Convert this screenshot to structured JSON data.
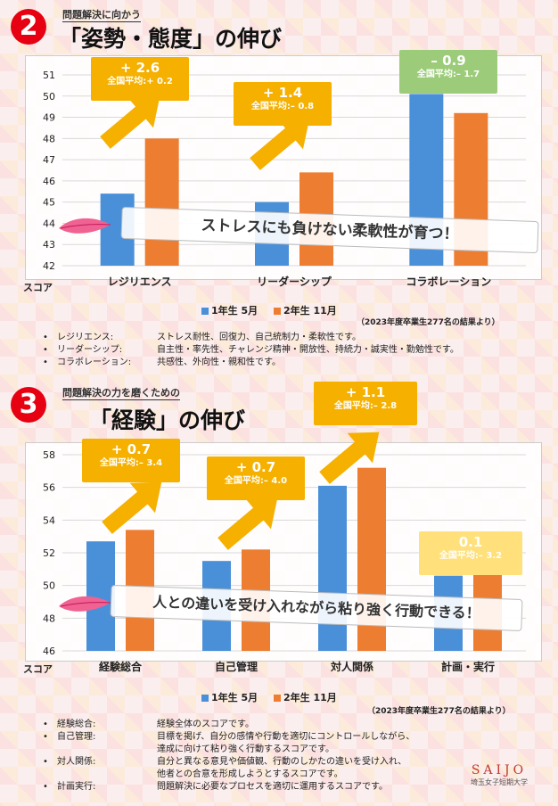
{
  "section2": {
    "number": "2",
    "subtitle": "問題解決に向かう",
    "title": "「姿勢・態度」の伸び",
    "banner": "ストレスにも負けない柔軟性が育つ！",
    "legend": [
      "1年生 5月",
      "2年生 11月"
    ],
    "source": "（2023年度卒業生277名の結果より）",
    "ylabel": "スコア",
    "callouts": [
      {
        "delta": "+ 2.6",
        "avg": "全国平均:+ 0.2"
      },
      {
        "delta": "+ 1.4",
        "avg": "全国平均:– 0.8"
      },
      {
        "delta": "– 0.9",
        "avg": "全国平均:– 1.7"
      }
    ],
    "definitions": [
      {
        "term": "レジリエンス:",
        "desc": "ストレス耐性、回復力、自己統制力・柔軟性です。"
      },
      {
        "term": "リーダーシップ:",
        "desc": "自主性・率先性、チャレンジ精神・開放性、持続力・誠実性・勤勉性です。"
      },
      {
        "term": "コラボレーション:",
        "desc": "共感性、外向性・親和性です。"
      }
    ]
  },
  "section3": {
    "number": "3",
    "subtitle": "問題解決の力を磨くための",
    "title": "「経験」の伸び",
    "banner": "人との違いを受け入れながら粘り強く行動できる！",
    "legend": [
      "1年生 5月",
      "2年生 11月"
    ],
    "source": "（2023年度卒業生277名の結果より）",
    "ylabel": "スコア",
    "callouts": [
      {
        "delta": "+ 0.7",
        "avg": "全国平均:– 3.4"
      },
      {
        "delta": "+ 0.7",
        "avg": "全国平均:– 4.0"
      },
      {
        "delta": "+ 1.1",
        "avg": "全国平均:– 2.8"
      },
      {
        "delta": "0.1",
        "avg": "全国平均:– 3.2"
      }
    ],
    "definitions": [
      {
        "term": "経験総合:",
        "desc": [
          "経験全体のスコアです。"
        ]
      },
      {
        "term": "自己管理:",
        "desc": [
          "目標を掲げ、自分の感情や行動を適切にコントロールしながら、",
          "達成に向けて粘り強く行動するスコアです。"
        ]
      },
      {
        "term": "対人関係:",
        "desc": [
          "自分と異なる意見や価値観、行動のしかたの違いを受け入れ、",
          "他者との合意を形成しようとするスコアです。"
        ]
      },
      {
        "term": "計画実行:",
        "desc": [
          "問題解決に必要なプロセスを適切に運用するスコアです。"
        ]
      }
    ]
  },
  "logo": {
    "brand": "SAIJO",
    "school": "埼玉女子短期大学"
  },
  "colors": {
    "series1": "#4a90d9",
    "series2": "#ed7d31",
    "accent": "#e60012",
    "callout": "#f5b000"
  },
  "chart_data": [
    {
      "type": "bar",
      "categories": [
        "レジリエンス",
        "リーダーシップ",
        "コラボレーション"
      ],
      "series": [
        {
          "name": "1年生 5月",
          "values": [
            45.4,
            45.0,
            50.1
          ]
        },
        {
          "name": "2年生 11月",
          "values": [
            48.0,
            46.4,
            49.2
          ]
        }
      ],
      "ylabel": "スコア",
      "ylim": [
        42,
        51
      ],
      "yticks": [
        42,
        43,
        44,
        45,
        46,
        47,
        48,
        49,
        50,
        51
      ],
      "grid": true,
      "legend": "bottom"
    },
    {
      "type": "bar",
      "categories": [
        "経験総合",
        "自己管理",
        "対人関係",
        "計画・実行"
      ],
      "series": [
        {
          "name": "1年生 5月",
          "values": [
            52.7,
            51.5,
            56.1,
            50.6
          ]
        },
        {
          "name": "2年生 11月",
          "values": [
            53.4,
            52.2,
            57.2,
            50.7
          ]
        }
      ],
      "ylabel": "スコア",
      "ylim": [
        46,
        58
      ],
      "yticks": [
        46,
        48,
        50,
        52,
        54,
        56,
        58
      ],
      "grid": true,
      "legend": "bottom"
    }
  ]
}
